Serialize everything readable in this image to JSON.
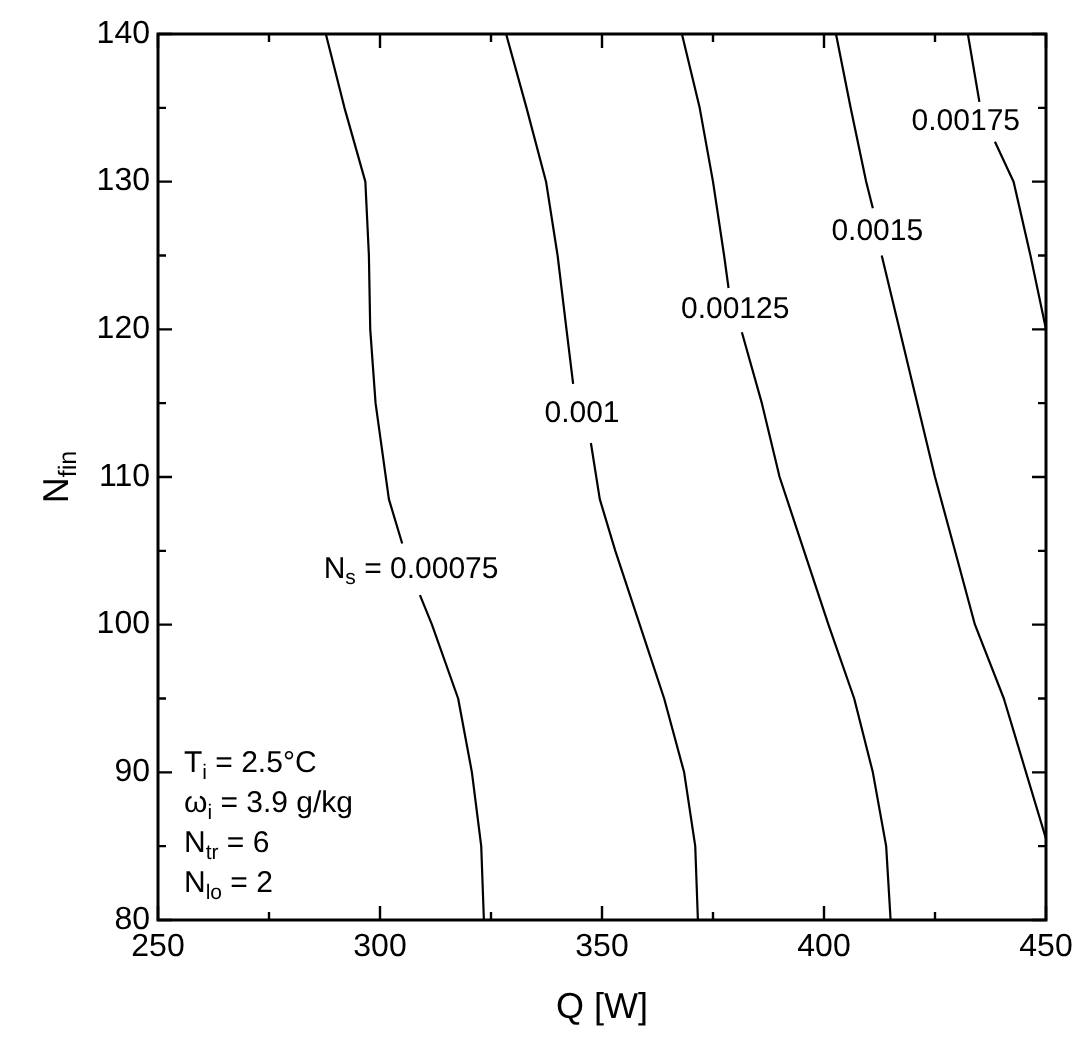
{
  "chart_data": {
    "type": "line",
    "xlabel": "Q [W]",
    "ylabel": "N$_{fin}$",
    "xlim": [
      250,
      450
    ],
    "ylim": [
      80,
      140
    ],
    "xticks": [
      250,
      {
        "value": 275,
        "label": null
      },
      300,
      {
        "value": 325,
        "label": null
      },
      350,
      {
        "value": 375,
        "label": null
      },
      400,
      {
        "value": 425,
        "label": null
      },
      450
    ],
    "yticks": [
      80,
      {
        "value": 85,
        "label": null
      },
      90,
      {
        "value": 95,
        "label": null
      },
      100,
      {
        "value": 105,
        "label": null
      },
      110,
      {
        "value": 115,
        "label": null
      },
      120,
      {
        "value": 125,
        "label": null
      },
      130,
      {
        "value": 135,
        "label": null
      },
      140
    ],
    "grid": false,
    "legend": false,
    "series": [
      {
        "color": "#000000",
        "x": [
          287.8,
          292,
          296.7,
          297.5,
          297.8,
          299,
          302,
          305,
          307,
          309,
          311.7,
          317.6,
          320.7,
          322.8,
          323.4
        ],
        "values": [
          140,
          135,
          130,
          125,
          120,
          115,
          108.5,
          105.5,
          null,
          102,
          100,
          95,
          90,
          85,
          80
        ]
      },
      {
        "color": "#000000",
        "x": [
          328.4,
          333,
          337.4,
          340,
          342,
          343.5,
          345.5,
          347.5,
          349.5,
          353,
          358.5,
          364,
          368.5,
          371,
          371.6
        ],
        "values": [
          140,
          135,
          130,
          125,
          120,
          116.3,
          null,
          112.3,
          108.5,
          105,
          100,
          95,
          90,
          85,
          80
        ]
      },
      {
        "color": "#000000",
        "x": [
          368,
          372,
          375,
          377.5,
          378.5,
          380,
          381.5,
          386,
          390,
          395.5,
          401,
          406.8,
          411,
          414,
          415
        ],
        "values": [
          140,
          135,
          130,
          125,
          122.8,
          null,
          119.8,
          115,
          110,
          105,
          100,
          95,
          90,
          85,
          80
        ]
      },
      {
        "color": "#000000",
        "x": [
          402.7,
          406,
          409.5,
          411,
          412,
          413,
          417,
          421,
          425,
          429.5,
          434,
          440.5,
          445.5,
          450
        ],
        "values": [
          140,
          135,
          130,
          128.2,
          null,
          125,
          120,
          115,
          110,
          105,
          100,
          95,
          90,
          85.5
        ]
      },
      {
        "color": "#000000",
        "x": [
          432.4,
          435,
          436.8,
          438.5,
          442.7,
          446.5,
          450
        ],
        "values": [
          140,
          135.4,
          null,
          132.7,
          130,
          125,
          120
        ]
      }
    ],
    "annotations": [
      "T$_{i}$ = 2.5°C",
      "ω$_{i}$ = 3.9 g/kg",
      "N$_{tr}$ = 6",
      "N$_{lo}$ = 2",
      {
        "text": "N$_{s}$ = 0.00075",
        "x": 305,
        "y": 105.5
      },
      {
        "text": "0.001",
        "x": 343.5,
        "y": 116.3
      },
      {
        "text": "0.00125",
        "x": 378.5,
        "y": 122.8
      },
      {
        "text": "0.0015",
        "x": 411,
        "y": 128.2
      },
      {
        "text": "0.00175",
        "x": 435,
        "y": 135.4
      }
    ]
  }
}
